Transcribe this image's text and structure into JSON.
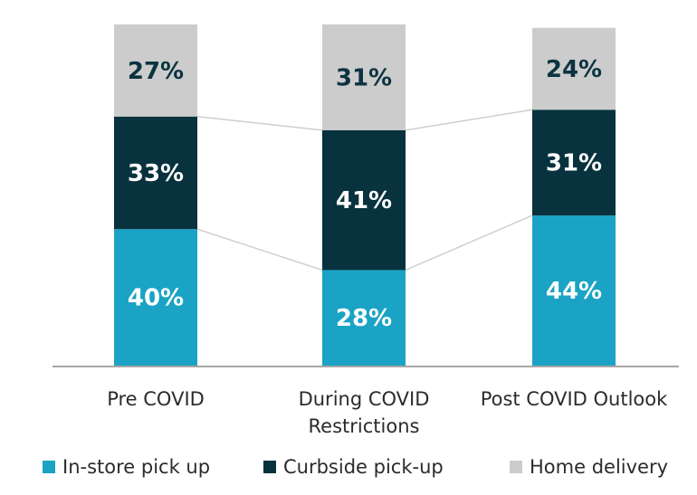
{
  "chart_data": {
    "type": "bar",
    "stacked": true,
    "stack_mode": "percent",
    "categories": [
      "Pre COVID",
      "During COVID\nRestrictions",
      "Post COVID Outlook"
    ],
    "series": [
      {
        "name": "In-store pick up",
        "values": [
          40,
          28,
          44
        ],
        "labels": [
          "40%",
          "28%",
          "44%"
        ],
        "color": "#1aa3c4",
        "label_color": "#ffffff"
      },
      {
        "name": "Curbside pick-up",
        "values": [
          33,
          41,
          31
        ],
        "labels": [
          "33%",
          "41%",
          "31%"
        ],
        "color": "#07323e",
        "label_color": "#ffffff"
      },
      {
        "name": "Home delivery",
        "values": [
          27,
          31,
          24
        ],
        "labels": [
          "27%",
          "31%",
          "24%"
        ],
        "color": "#cccccc",
        "label_color": "#0b3340"
      }
    ],
    "ylim": [
      0,
      100
    ],
    "grid": false,
    "legend_position": "bottom",
    "connector_lines": true,
    "connector_color": "#cfcfcf",
    "axis_color": "#a6a6a6"
  }
}
